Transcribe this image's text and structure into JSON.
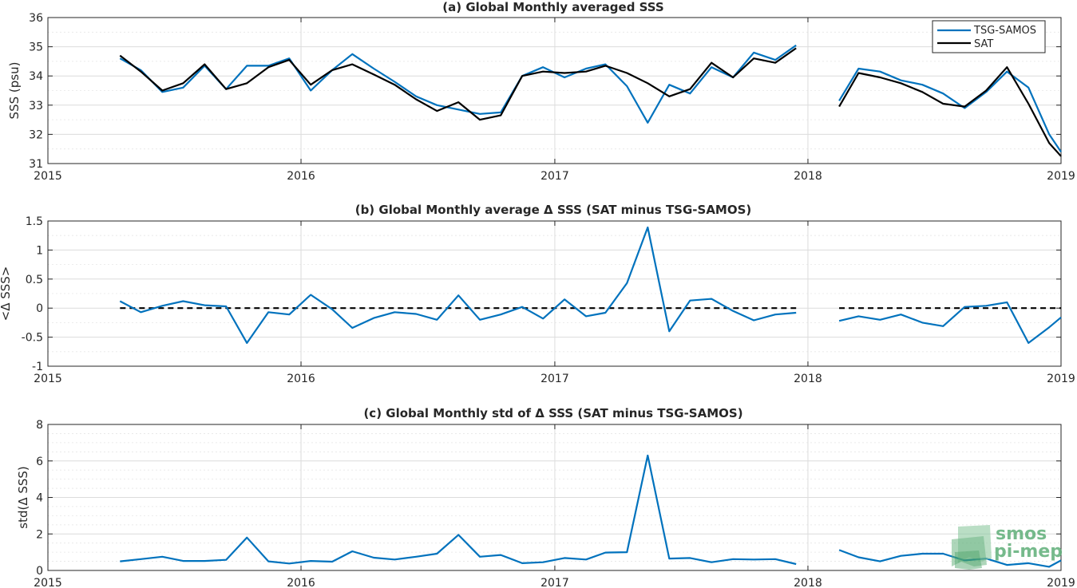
{
  "chart_data": [
    {
      "type": "line",
      "title": "(a) Global Monthly averaged SSS",
      "xlabel": "",
      "ylabel": "SSS (psu)",
      "xlim": [
        "2015",
        "2019"
      ],
      "ylim": [
        31,
        36
      ],
      "x_tick_labels": [
        "2015",
        "2016",
        "2017",
        "2018",
        "2019"
      ],
      "y_ticks": [
        31,
        32,
        33,
        34,
        35,
        36
      ],
      "grid": true,
      "legend_position": "top-right",
      "x": [
        "2015-04-15",
        "2015-05-15",
        "2015-06-15",
        "2015-07-15",
        "2015-08-15",
        "2015-09-15",
        "2015-10-15",
        "2015-11-15",
        "2015-12-15",
        "2016-01-15",
        "2016-02-15",
        "2016-03-15",
        "2016-04-15",
        "2016-05-15",
        "2016-06-15",
        "2016-07-15",
        "2016-08-15",
        "2016-09-15",
        "2016-10-15",
        "2016-11-15",
        "2016-12-15",
        "2017-01-15",
        "2017-02-15",
        "2017-03-15",
        "2017-04-15",
        "2017-05-15",
        "2017-06-15",
        "2017-07-15",
        "2017-08-15",
        "2017-09-15",
        "2017-10-15",
        "2017-11-15",
        "2017-12-15",
        "2018-01-15",
        "2018-02-15",
        "2018-03-15",
        "2018-04-15",
        "2018-05-15",
        "2018-06-15",
        "2018-07-15",
        "2018-08-15",
        "2018-09-15",
        "2018-10-15",
        "2018-11-15",
        "2018-12-15",
        "2019-01-01"
      ],
      "series": [
        {
          "name": "TSG-SAMOS",
          "color": "#0072BD",
          "values": [
            34.6,
            34.2,
            33.45,
            33.6,
            34.35,
            33.55,
            34.35,
            34.35,
            34.6,
            33.5,
            34.2,
            34.75,
            34.25,
            33.8,
            33.3,
            33.0,
            32.85,
            32.7,
            32.75,
            34.0,
            34.3,
            33.95,
            34.25,
            34.4,
            33.65,
            32.4,
            33.7,
            33.4,
            34.3,
            33.95,
            34.8,
            34.55,
            35.05,
            null,
            33.15,
            34.25,
            34.15,
            33.85,
            33.7,
            33.4,
            32.9,
            33.45,
            34.15,
            33.6,
            32.0,
            31.4
          ]
        },
        {
          "name": "SAT",
          "color": "#000000",
          "values": [
            34.7,
            34.15,
            33.5,
            33.75,
            34.4,
            33.55,
            33.75,
            34.3,
            34.55,
            33.7,
            34.2,
            34.4,
            34.05,
            33.7,
            33.2,
            32.8,
            33.1,
            32.5,
            32.65,
            34.0,
            34.15,
            34.1,
            34.15,
            34.35,
            34.1,
            33.75,
            33.3,
            33.55,
            34.45,
            33.95,
            34.6,
            34.45,
            34.95,
            null,
            32.95,
            34.1,
            33.95,
            33.75,
            33.45,
            33.05,
            32.95,
            33.5,
            34.3,
            33.05,
            31.7,
            31.25
          ]
        }
      ]
    },
    {
      "type": "line",
      "title": "(b) Global Monthly average Δ SSS (SAT minus TSG-SAMOS)",
      "xlabel": "",
      "ylabel": "<Δ SSS>",
      "xlim": [
        "2015",
        "2019"
      ],
      "ylim": [
        -1,
        1.5
      ],
      "x_tick_labels": [
        "2015",
        "2016",
        "2017",
        "2018",
        "2019"
      ],
      "y_tick_labels": [
        "-1",
        "-0.5",
        "0",
        "0.5",
        "1",
        "1.5"
      ],
      "y_ticks": [
        -1,
        -0.5,
        0,
        0.5,
        1,
        1.5
      ],
      "grid": true,
      "zero_reference_line": {
        "y": 0,
        "style": "dashed",
        "color": "#000000"
      },
      "x": [
        "2015-04-15",
        "2015-05-15",
        "2015-06-15",
        "2015-07-15",
        "2015-08-15",
        "2015-09-15",
        "2015-10-15",
        "2015-11-15",
        "2015-12-15",
        "2016-01-15",
        "2016-02-15",
        "2016-03-15",
        "2016-04-15",
        "2016-05-15",
        "2016-06-15",
        "2016-07-15",
        "2016-08-15",
        "2016-09-15",
        "2016-10-15",
        "2016-11-15",
        "2016-12-15",
        "2017-01-15",
        "2017-02-15",
        "2017-03-15",
        "2017-04-15",
        "2017-05-15",
        "2017-06-15",
        "2017-07-15",
        "2017-08-15",
        "2017-09-15",
        "2017-10-15",
        "2017-11-15",
        "2017-12-15",
        "2018-01-15",
        "2018-02-15",
        "2018-03-15",
        "2018-04-15",
        "2018-05-15",
        "2018-06-15",
        "2018-07-15",
        "2018-08-15",
        "2018-09-15",
        "2018-10-15",
        "2018-11-15",
        "2018-12-15",
        "2019-01-01"
      ],
      "series": [
        {
          "name": "",
          "color": "#0072BD",
          "values": [
            0.12,
            -0.07,
            0.04,
            0.12,
            0.05,
            0.03,
            -0.6,
            -0.07,
            -0.11,
            0.23,
            -0.02,
            -0.34,
            -0.17,
            -0.07,
            -0.1,
            -0.2,
            0.22,
            -0.2,
            -0.11,
            0.02,
            -0.18,
            0.15,
            -0.14,
            -0.08,
            0.43,
            1.39,
            -0.4,
            0.13,
            0.16,
            -0.05,
            -0.21,
            -0.11,
            -0.08,
            null,
            -0.22,
            -0.14,
            -0.2,
            -0.11,
            -0.25,
            -0.31,
            0.02,
            0.04,
            0.1,
            -0.6,
            -0.33,
            -0.16
          ]
        }
      ]
    },
    {
      "type": "line",
      "title": "(c) Global Monthly std of Δ SSS (SAT minus TSG-SAMOS)",
      "xlabel": "",
      "ylabel": "std(Δ SSS)",
      "xlim": [
        "2015",
        "2019"
      ],
      "ylim": [
        0,
        8
      ],
      "x_tick_labels": [
        "2015",
        "2016",
        "2017",
        "2018",
        "2019"
      ],
      "y_ticks": [
        0,
        2,
        4,
        6,
        8
      ],
      "grid": true,
      "x": [
        "2015-04-15",
        "2015-05-15",
        "2015-06-15",
        "2015-07-15",
        "2015-08-15",
        "2015-09-15",
        "2015-10-15",
        "2015-11-15",
        "2015-12-15",
        "2016-01-15",
        "2016-02-15",
        "2016-03-15",
        "2016-04-15",
        "2016-05-15",
        "2016-06-15",
        "2016-07-15",
        "2016-08-15",
        "2016-09-15",
        "2016-10-15",
        "2016-11-15",
        "2016-12-15",
        "2017-01-15",
        "2017-02-15",
        "2017-03-15",
        "2017-04-15",
        "2017-05-15",
        "2017-06-15",
        "2017-07-15",
        "2017-08-15",
        "2017-09-15",
        "2017-10-15",
        "2017-11-15",
        "2017-12-15",
        "2018-01-15",
        "2018-02-15",
        "2018-03-15",
        "2018-04-15",
        "2018-05-15",
        "2018-06-15",
        "2018-07-15",
        "2018-08-15",
        "2018-09-15",
        "2018-10-15",
        "2018-11-15",
        "2018-12-15",
        "2019-01-01"
      ],
      "series": [
        {
          "name": "",
          "color": "#0072BD",
          "values": [
            0.5,
            0.62,
            0.75,
            0.52,
            0.52,
            0.58,
            1.8,
            0.5,
            0.38,
            0.52,
            0.48,
            1.05,
            0.7,
            0.6,
            0.75,
            0.92,
            1.95,
            0.75,
            0.85,
            0.4,
            0.45,
            0.68,
            0.6,
            0.98,
            1.0,
            6.3,
            0.65,
            0.68,
            0.45,
            0.62,
            0.6,
            0.62,
            0.35,
            null,
            1.12,
            0.72,
            0.5,
            0.8,
            0.92,
            0.92,
            0.55,
            0.65,
            0.3,
            0.4,
            0.2,
            0.55
          ]
        }
      ]
    }
  ],
  "logo": {
    "text_line1": "smos",
    "text_line2": "pi-mep",
    "color": "#3a9a5a"
  }
}
